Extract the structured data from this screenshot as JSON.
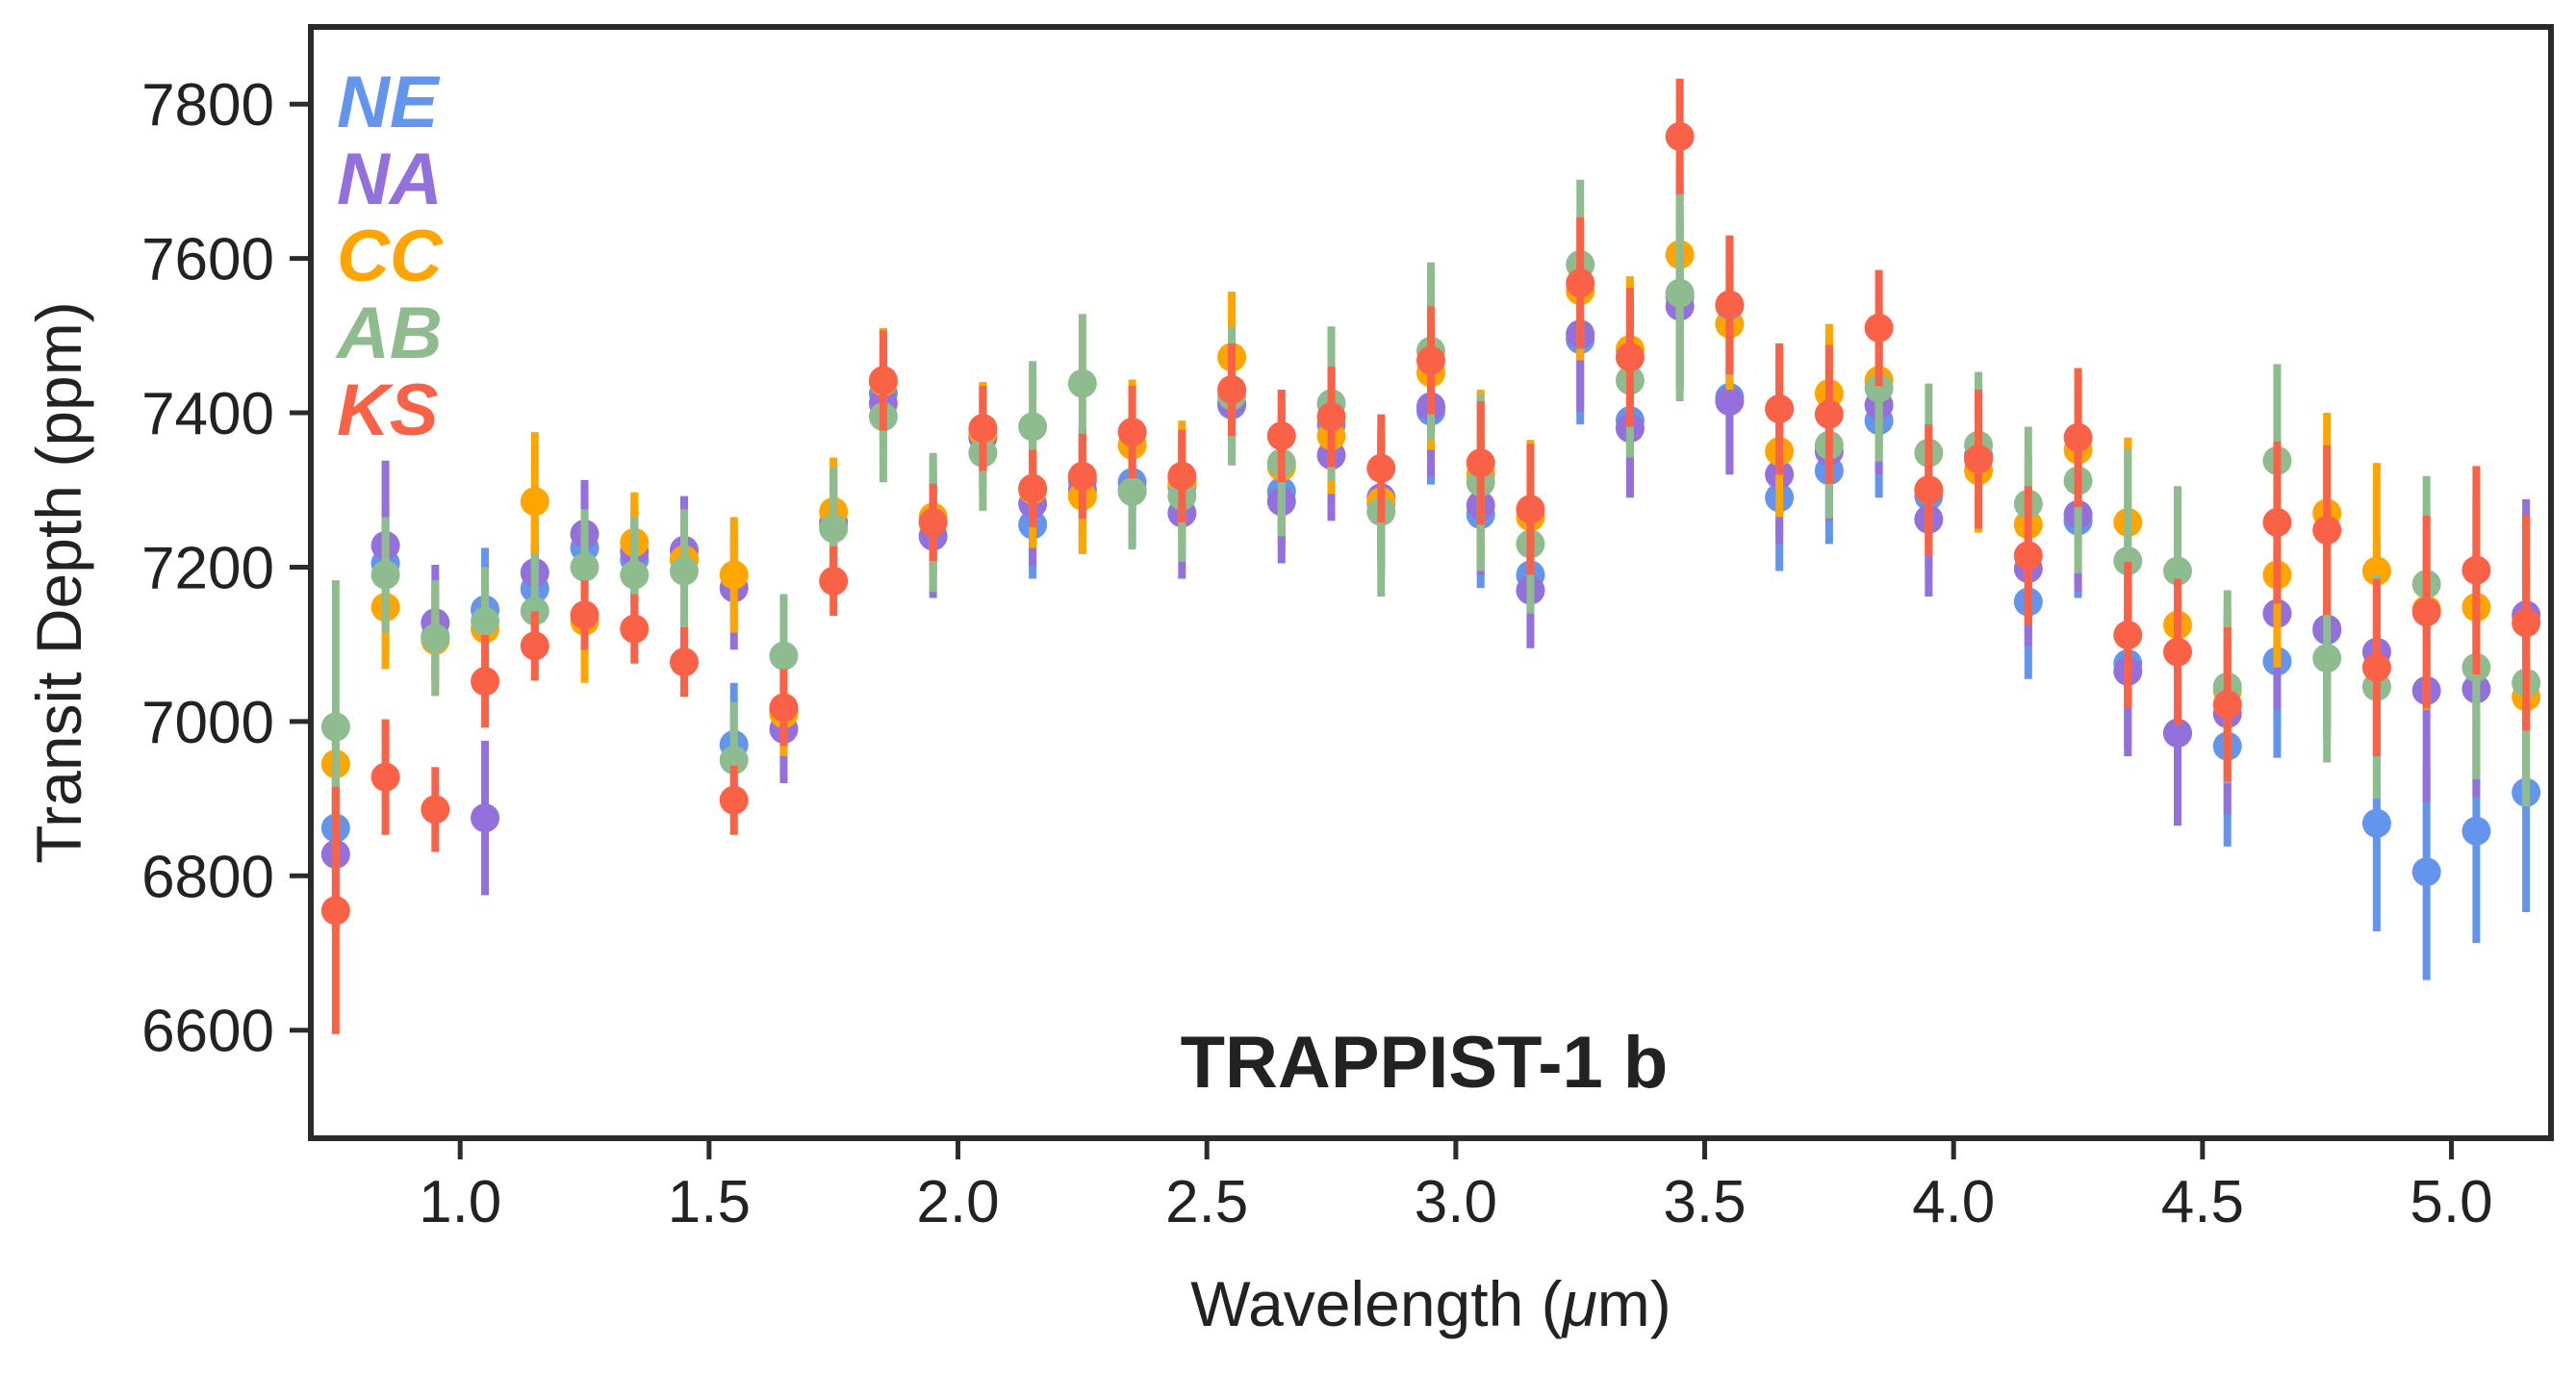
{
  "chart_data": {
    "type": "errorbar-scatter",
    "title": "TRAPPIST-1 b",
    "xlabel": "Wavelength (μm)",
    "ylabel": "Transit Depth (ppm)",
    "xlim": [
      0.7,
      5.2
    ],
    "ylim": [
      6460,
      7900
    ],
    "xticks": [
      1.0,
      1.5,
      2.0,
      2.5,
      3.0,
      3.5,
      4.0,
      4.5,
      5.0
    ],
    "xtick_labels": [
      "1.0",
      "1.5",
      "2.0",
      "2.5",
      "3.0",
      "3.5",
      "4.0",
      "4.5",
      "5.0"
    ],
    "yticks": [
      6600,
      6800,
      7000,
      7200,
      7400,
      7600,
      7800
    ],
    "ytick_labels": [
      "6600",
      "6800",
      "7000",
      "7200",
      "7400",
      "7600",
      "7800"
    ],
    "legend_position": "top-left",
    "x": [
      0.75,
      0.85,
      0.95,
      1.05,
      1.15,
      1.25,
      1.35,
      1.45,
      1.55,
      1.65,
      1.75,
      1.85,
      1.95,
      2.05,
      2.15,
      2.25,
      2.35,
      2.45,
      2.55,
      2.65,
      2.75,
      2.85,
      2.95,
      3.05,
      3.15,
      3.25,
      3.35,
      3.45,
      3.55,
      3.65,
      3.75,
      3.85,
      3.95,
      4.05,
      4.15,
      4.25,
      4.35,
      4.45,
      4.55,
      4.65,
      4.75,
      4.85,
      4.95,
      5.05,
      5.15
    ],
    "series": [
      {
        "name": "NE",
        "color": "#6495ED",
        "values": [
          6862,
          7205,
          7110,
          7145,
          7172,
          7225,
          7210,
          7210,
          6970,
          7015,
          7258,
          7425,
          7260,
          7370,
          7255,
          7312,
          7310,
          7305,
          7410,
          7298,
          7385,
          7282,
          7402,
          7268,
          7190,
          7495,
          7390,
          7550,
          7420,
          7290,
          7325,
          7390,
          7292,
          7340,
          7155,
          7260,
          7075,
          6985,
          6968,
          7078,
          7118,
          6868,
          6805,
          6858,
          6908
        ],
        "errors": [
          50,
          70,
          60,
          80,
          60,
          60,
          60,
          60,
          80,
          60,
          60,
          60,
          70,
          55,
          70,
          70,
          70,
          70,
          70,
          70,
          85,
          80,
          95,
          95,
          95,
          110,
          90,
          120,
          95,
          95,
          95,
          100,
          95,
          95,
          100,
          100,
          110,
          120,
          130,
          125,
          140,
          140,
          140,
          145,
          155
        ]
      },
      {
        "name": "NA",
        "color": "#9370DB",
        "values": [
          6828,
          7228,
          7128,
          6875,
          7193,
          7243,
          7220,
          7222,
          7173,
          6990,
          7255,
          7412,
          7240,
          7368,
          7282,
          7300,
          7300,
          7270,
          7412,
          7285,
          7345,
          7290,
          7408,
          7280,
          7170,
          7502,
          7380,
          7538,
          7415,
          7320,
          7350,
          7410,
          7262,
          7345,
          7198,
          7268,
          7065,
          6985,
          7010,
          7140,
          7120,
          7090,
          7040,
          7042,
          7138
        ],
        "errors": [
          100,
          110,
          75,
          100,
          75,
          70,
          65,
          70,
          80,
          70,
          70,
          75,
          80,
          70,
          80,
          80,
          75,
          85,
          80,
          80,
          85,
          80,
          90,
          90,
          75,
          100,
          90,
          105,
          95,
          90,
          90,
          90,
          100,
          100,
          100,
          100,
          110,
          120,
          130,
          125,
          130,
          140,
          145,
          140,
          150
        ]
      },
      {
        "name": "CC",
        "color": "#FFA500",
        "values": [
          6945,
          7148,
          7105,
          7120,
          7285,
          7130,
          7232,
          7210,
          7190,
          7010,
          7272,
          7440,
          7265,
          7375,
          7300,
          7292,
          7358,
          7310,
          7472,
          7330,
          7370,
          7285,
          7452,
          7320,
          7265,
          7558,
          7482,
          7605,
          7515,
          7350,
          7425,
          7442,
          7300,
          7325,
          7255,
          7352,
          7258,
          7125,
          7040,
          7190,
          7270,
          7195,
          7145,
          7148,
          7032
        ],
        "errors": [
          50,
          80,
          70,
          80,
          90,
          80,
          65,
          60,
          75,
          55,
          70,
          70,
          75,
          65,
          75,
          75,
          85,
          80,
          85,
          75,
          75,
          90,
          100,
          110,
          100,
          90,
          95,
          120,
          85,
          85,
          90,
          95,
          80,
          80,
          90,
          95,
          110,
          110,
          110,
          120,
          130,
          140,
          130,
          140,
          140
        ]
      },
      {
        "name": "AB",
        "color": "#8FBC8F",
        "values": [
          6993,
          7190,
          7108,
          7130,
          7143,
          7200,
          7190,
          7195,
          6950,
          7085,
          7250,
          7395,
          7258,
          7348,
          7382,
          7438,
          7298,
          7292,
          7422,
          7335,
          7412,
          7272,
          7480,
          7310,
          7230,
          7592,
          7442,
          7555,
          7538,
          7405,
          7358,
          7432,
          7348,
          7358,
          7282,
          7312,
          7208,
          7195,
          7045,
          7338,
          7082,
          7045,
          7178,
          7070,
          7050
        ],
        "errors": [
          190,
          75,
          75,
          70,
          75,
          75,
          75,
          80,
          75,
          80,
          80,
          85,
          90,
          75,
          85,
          90,
          75,
          85,
          90,
          95,
          100,
          110,
          115,
          115,
          90,
          110,
          100,
          140,
          90,
          85,
          95,
          95,
          90,
          95,
          100,
          120,
          145,
          110,
          125,
          125,
          135,
          145,
          140,
          145,
          160
        ]
      },
      {
        "name": "KS",
        "color": "#FA6248",
        "values": [
          6755,
          6928,
          6886,
          7052,
          7098,
          7138,
          7120,
          7077,
          6898,
          7018,
          7182,
          7442,
          7258,
          7380,
          7302,
          7318,
          7375,
          7318,
          7430,
          7370,
          7395,
          7328,
          7468,
          7335,
          7275,
          7568,
          7472,
          7758,
          7540,
          7405,
          7398,
          7510,
          7300,
          7340,
          7215,
          7368,
          7112,
          7090,
          7022,
          7258,
          7248,
          7070,
          7142,
          7196,
          7128
        ],
        "errors": [
          160,
          75,
          55,
          60,
          45,
          45,
          45,
          45,
          45,
          50,
          45,
          65,
          50,
          55,
          50,
          55,
          60,
          60,
          60,
          60,
          65,
          70,
          70,
          80,
          85,
          85,
          90,
          75,
          90,
          85,
          90,
          75,
          85,
          90,
          90,
          90,
          95,
          95,
          100,
          105,
          110,
          115,
          125,
          135,
          140
        ]
      }
    ]
  }
}
